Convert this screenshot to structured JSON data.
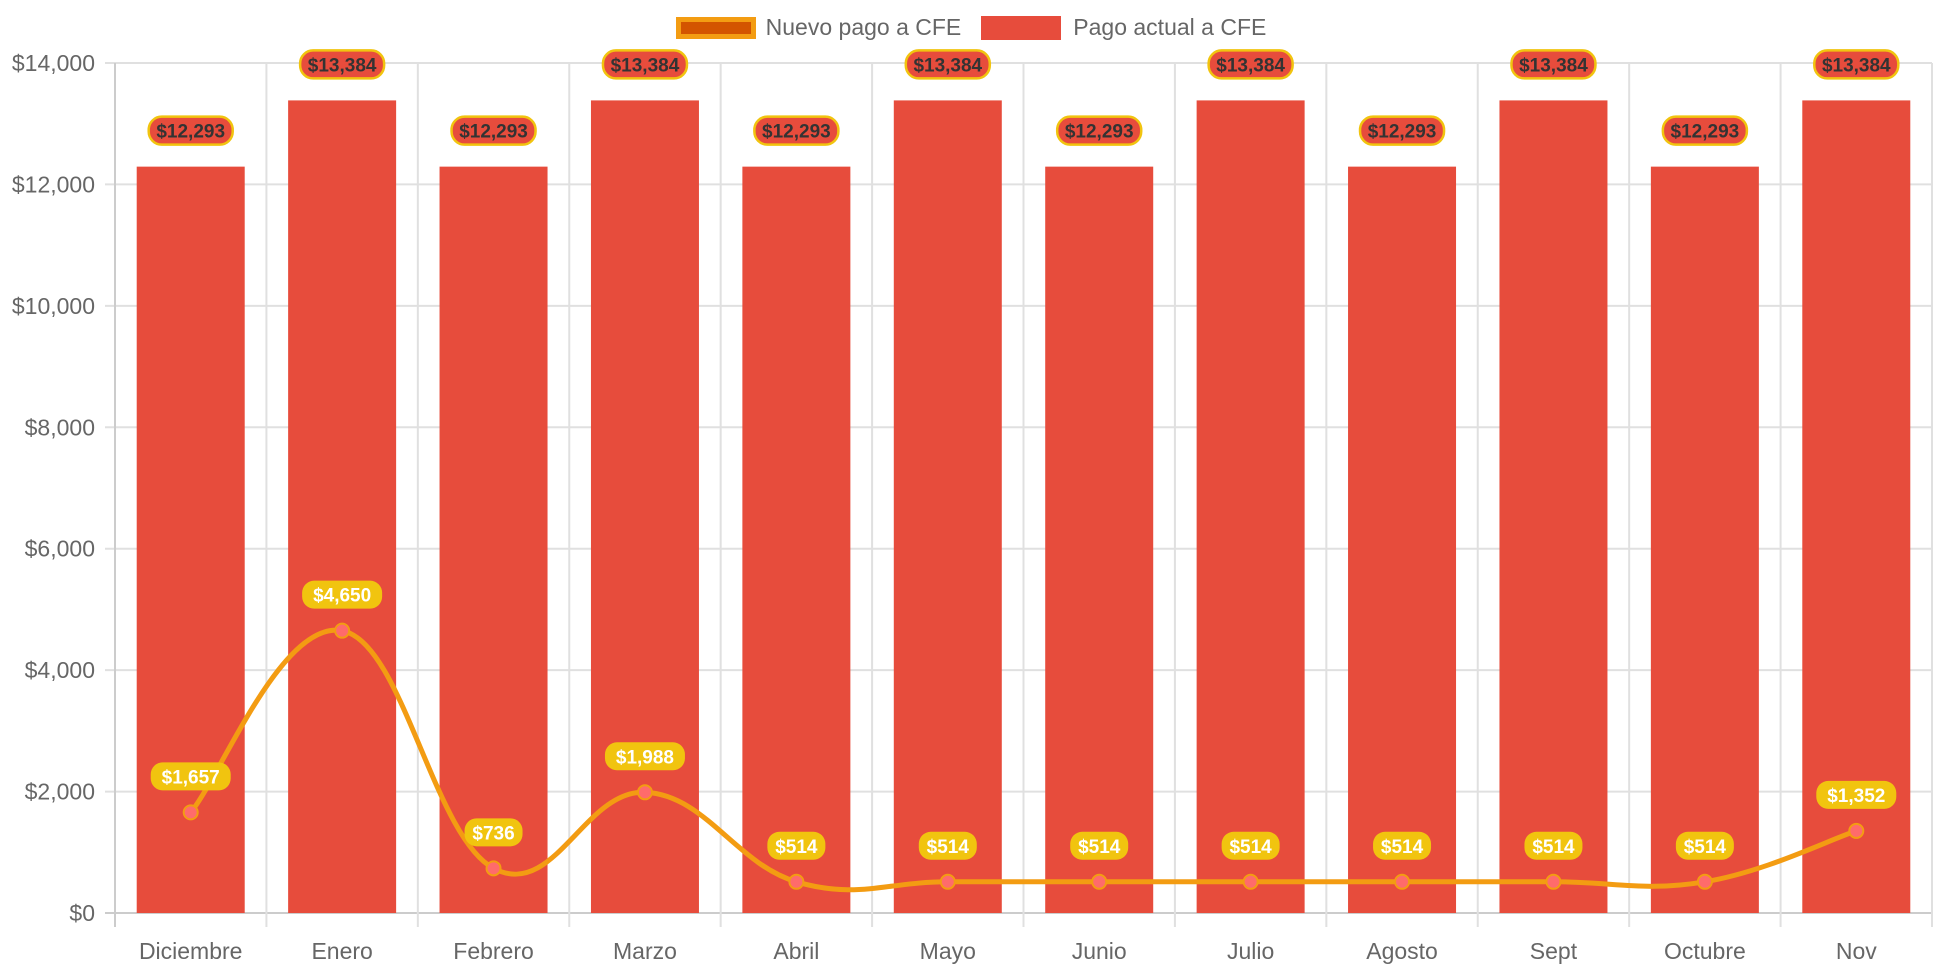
{
  "chart_data": {
    "type": "bar",
    "title": "",
    "xlabel": "",
    "ylabel": "",
    "categories": [
      "Diciembre",
      "Enero",
      "Febrero",
      "Marzo",
      "Abril",
      "Mayo",
      "Junio",
      "Julio",
      "Agosto",
      "Sept",
      "Octubre",
      "Nov"
    ],
    "ylim": [
      0,
      14000
    ],
    "yticks": [
      0,
      2000,
      4000,
      6000,
      8000,
      10000,
      12000,
      14000
    ],
    "ytick_labels": [
      "$0",
      "$2,000",
      "$4,000",
      "$6,000",
      "$8,000",
      "$10,000",
      "$12,000",
      "$14,000"
    ],
    "grid": true,
    "legend_position": "top-center",
    "series": [
      {
        "name": "Nuevo pago a CFE",
        "type": "line",
        "smooth": true,
        "color": "#f39c12",
        "legend_fill": "#d35400",
        "point_color": "#ff6b6b",
        "label_bg": "#f1c40f",
        "values": [
          1657,
          4650,
          736,
          1988,
          514,
          514,
          514,
          514,
          514,
          514,
          514,
          1352
        ],
        "labels": [
          "$1,657",
          "$4,650",
          "$736",
          "$1,988",
          "$514",
          "$514",
          "$514",
          "$514",
          "$514",
          "$514",
          "$514",
          "$1,352"
        ]
      },
      {
        "name": "Pago actual a CFE",
        "type": "bar",
        "color": "#e74c3c",
        "label_border": "#f1c40f",
        "values": [
          12293,
          13384,
          12293,
          13384,
          12293,
          13384,
          12293,
          13384,
          12293,
          13384,
          12293,
          13384
        ],
        "labels": [
          "$12,293",
          "$13,384",
          "$12,293",
          "$13,384",
          "$12,293",
          "$13,384",
          "$12,293",
          "$13,384",
          "$12,293",
          "$13,384",
          "$12,293",
          "$13,384"
        ]
      }
    ]
  }
}
